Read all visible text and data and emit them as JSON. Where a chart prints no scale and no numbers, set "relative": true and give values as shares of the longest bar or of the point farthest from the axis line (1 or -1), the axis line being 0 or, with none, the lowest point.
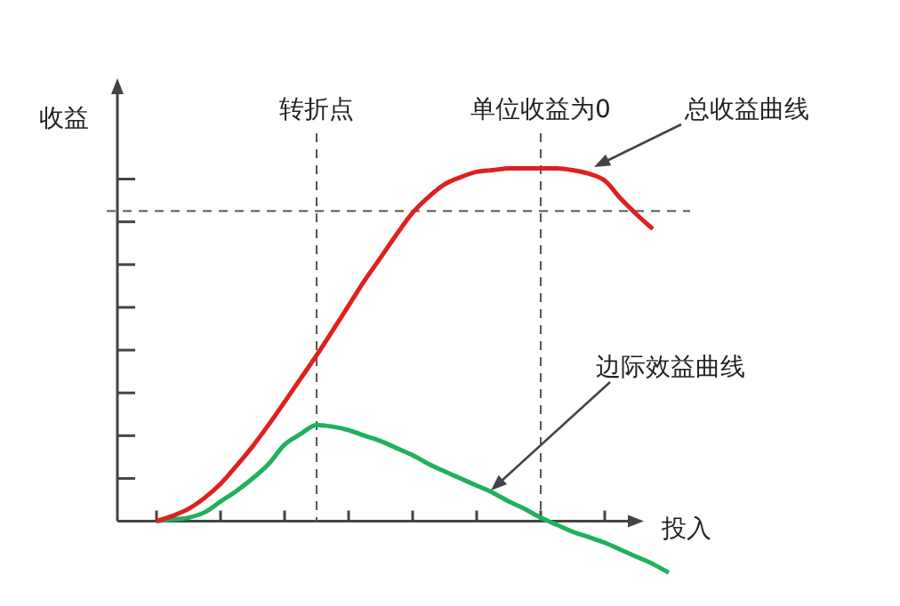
{
  "chart_data": {
    "type": "line",
    "relative": true,
    "xlabel": "投入",
    "ylabel": "收益",
    "legend": false,
    "marker": "none",
    "line_style": "solid",
    "categories": [
      null,
      null,
      null,
      null,
      null,
      null,
      null,
      null,
      null,
      null,
      null,
      null,
      null,
      null,
      null,
      null,
      null,
      null,
      null,
      null,
      null,
      null,
      null,
      null,
      null,
      null,
      null,
      null,
      null,
      null,
      null,
      null,
      null
    ],
    "series": [
      {
        "color": "#e02020",
        "values": [
          0,
          0.015,
          0.035,
          0.066,
          0.106,
          0.157,
          0.212,
          0.273,
          0.338,
          0.404,
          0.47,
          0.54,
          0.611,
          0.682,
          0.747,
          0.813,
          0.874,
          0.919,
          0.955,
          0.975,
          0.99,
          0.995,
          1,
          1,
          1,
          1,
          0.995,
          0.985,
          0.965,
          0.914,
          0.869,
          0.828,
          null
        ]
      },
      {
        "color": "#20b060",
        "values": [
          0,
          0.005,
          0.01,
          0.025,
          0.056,
          0.086,
          0.121,
          0.162,
          0.217,
          0.247,
          0.273,
          0.268,
          0.258,
          0.242,
          0.227,
          0.207,
          0.187,
          0.162,
          0.141,
          0.121,
          0.101,
          0.081,
          0.056,
          0.035,
          0.01,
          -0.01,
          -0.03,
          -0.045,
          -0.061,
          -0.081,
          -0.101,
          -0.121,
          -0.146
        ]
      }
    ],
    "ref_lines": [
      {
        "axis": "y",
        "value": 0.879,
        "line_style": "dashed",
        "color": "#555555"
      }
    ],
    "annotations": [
      "转折点",
      "单位收益为0",
      "总收益曲线",
      "边际效益曲线"
    ]
  }
}
